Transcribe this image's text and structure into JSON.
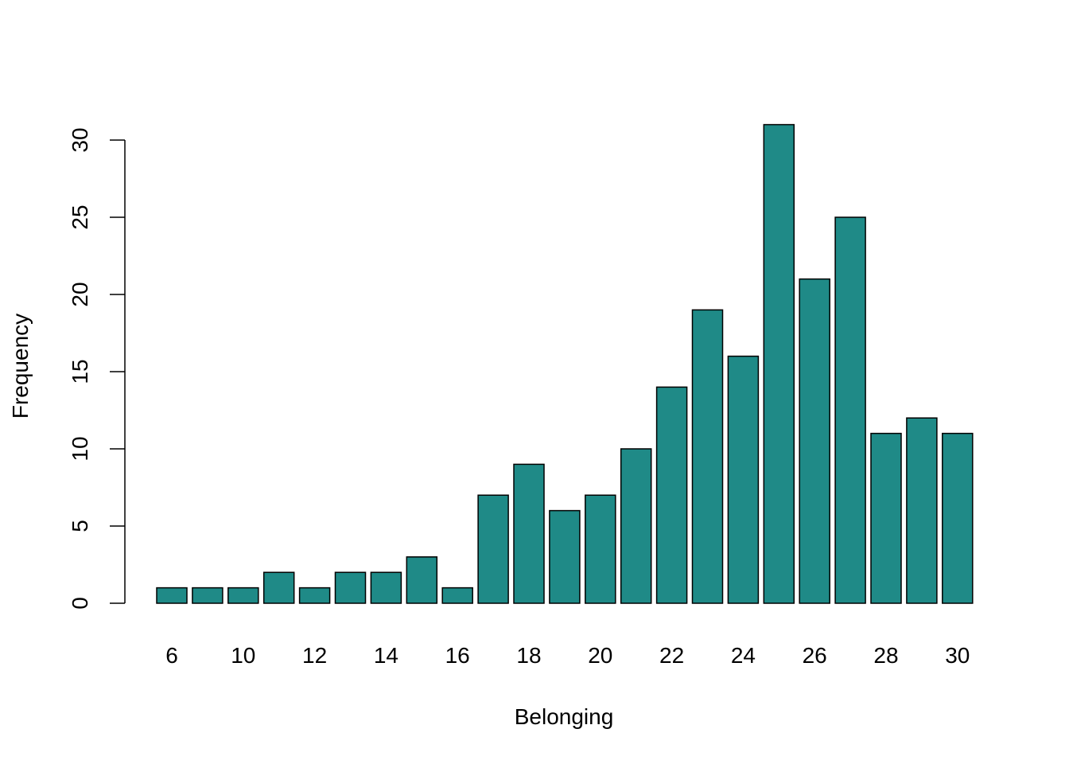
{
  "chart_data": {
    "type": "bar",
    "categories": [
      "6",
      "7",
      "10",
      "11",
      "12",
      "13",
      "14",
      "15",
      "16",
      "17",
      "18",
      "19",
      "20",
      "21",
      "22",
      "23",
      "24",
      "25",
      "26",
      "27",
      "28",
      "29",
      "30"
    ],
    "values": [
      1,
      1,
      1,
      2,
      1,
      2,
      2,
      3,
      1,
      7,
      9,
      6,
      7,
      10,
      14,
      19,
      16,
      31,
      21,
      25,
      11,
      12,
      11
    ],
    "category_labels_shown": [
      "6",
      "",
      "10",
      "",
      "12",
      "",
      "14",
      "",
      "16",
      "",
      "18",
      "",
      "20",
      "",
      "22",
      "",
      "24",
      "",
      "26",
      "",
      "28",
      "",
      "30"
    ],
    "xlabel": "Belonging",
    "ylabel": "Frequency",
    "ylim": [
      0,
      31
    ],
    "y_ticks": [
      "0",
      "5",
      "10",
      "15",
      "20",
      "25",
      "30"
    ],
    "grid": false,
    "legend": "none",
    "bar_color": "#1f8a87",
    "bar_border_color": "#000000"
  }
}
